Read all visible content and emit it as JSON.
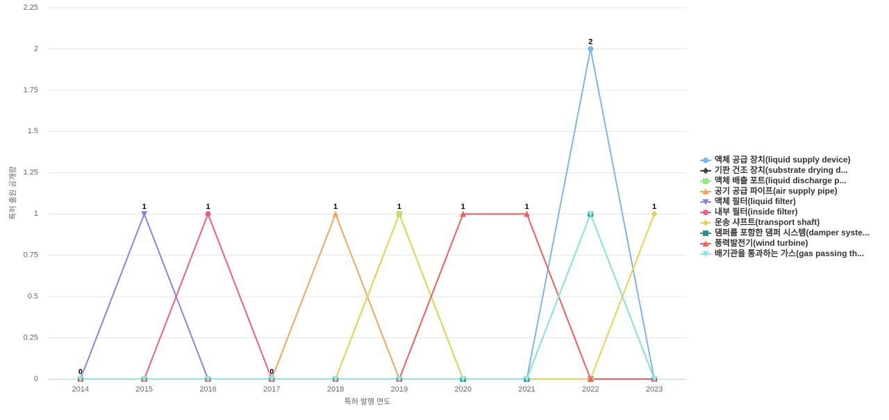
{
  "chart_data": {
    "type": "line",
    "x_label": "특허 발행 연도",
    "y_label": "특허 출원 공개량",
    "categories": [
      "2014",
      "2015",
      "2016",
      "2017",
      "2018",
      "2019",
      "2020",
      "2021",
      "2022",
      "2023"
    ],
    "ylim": [
      0,
      2.25
    ],
    "yticks": [
      0,
      0.25,
      0.5,
      0.75,
      1,
      1.25,
      1.5,
      1.75,
      2,
      2.25
    ],
    "grid": true,
    "legend": "right",
    "series": [
      {
        "name": "액체 공급 장치(liquid supply device)",
        "color": "#7cb5ec",
        "symbol": "circle",
        "values": [
          0,
          0,
          0,
          0,
          0,
          0,
          0,
          0,
          2,
          0
        ]
      },
      {
        "name": "기판 건조 장치(substrate drying d...",
        "color": "#434348",
        "symbol": "diamond",
        "values": [
          0,
          0,
          0,
          0,
          0,
          0,
          0,
          0,
          0,
          0
        ]
      },
      {
        "name": "액체 배출 포트(liquid discharge p...",
        "color": "#90ed7d",
        "symbol": "square",
        "values": [
          0,
          0,
          0,
          0,
          0,
          1,
          0,
          0,
          0,
          0
        ]
      },
      {
        "name": "공기 공급 파이프(air supply pipe)",
        "color": "#f7a35c",
        "symbol": "triangle",
        "values": [
          0,
          0,
          0,
          0,
          1,
          0,
          0,
          0,
          0,
          0
        ]
      },
      {
        "name": "액체 필터(liquid filter)",
        "color": "#8085e9",
        "symbol": "triangle-down",
        "values": [
          0,
          1,
          0,
          0,
          0,
          0,
          0,
          0,
          0,
          0
        ]
      },
      {
        "name": "내부 필터(inside filter)",
        "color": "#f15c80",
        "symbol": "circle",
        "values": [
          0,
          0,
          1,
          0,
          0,
          0,
          0,
          0,
          0,
          0
        ]
      },
      {
        "name": "운송 샤프트(transport shaft)",
        "color": "#e4d354",
        "symbol": "diamond",
        "values": [
          0,
          0,
          0,
          0,
          0,
          1,
          0,
          0,
          0,
          1
        ]
      },
      {
        "name": "댐퍼를 포함한 댐퍼 시스템(damper syste...",
        "color": "#2b908f",
        "symbol": "square",
        "values": [
          0,
          0,
          0,
          0,
          0,
          0,
          0,
          0,
          1,
          0
        ]
      },
      {
        "name": "풍력발전기(wind turbine)",
        "color": "#f45b5b",
        "symbol": "triangle",
        "values": [
          0,
          0,
          0,
          0,
          0,
          0,
          1,
          1,
          0,
          0
        ]
      },
      {
        "name": "배기관을 통과하는 가스(gas passing th...",
        "color": "#91e8e1",
        "symbol": "triangle-down",
        "values": [
          0,
          0,
          0,
          0,
          0,
          0,
          0,
          0,
          1,
          0
        ]
      }
    ]
  }
}
